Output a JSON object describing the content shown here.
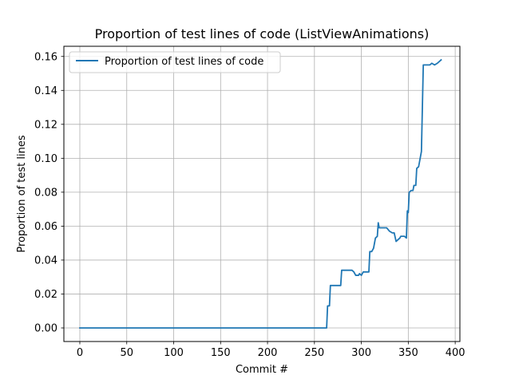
{
  "chart_data": {
    "type": "line",
    "title": "Proportion of test lines of code (ListViewAnimations)",
    "xlabel": "Commit #",
    "ylabel": "Proportion of test lines",
    "xlim": [
      -17,
      405
    ],
    "ylim": [
      -0.008,
      0.166
    ],
    "xticks": [
      0,
      50,
      100,
      150,
      200,
      250,
      300,
      350,
      400
    ],
    "xtick_labels": [
      "0",
      "50",
      "100",
      "150",
      "200",
      "250",
      "300",
      "350",
      "400"
    ],
    "yticks": [
      0.0,
      0.02,
      0.04,
      0.06,
      0.08,
      0.1,
      0.12,
      0.14,
      0.16
    ],
    "ytick_labels": [
      "0.00",
      "0.02",
      "0.04",
      "0.06",
      "0.08",
      "0.10",
      "0.12",
      "0.14",
      "0.16"
    ],
    "grid": true,
    "legend_position": "top-left",
    "series": [
      {
        "name": "Proportion of test lines of code",
        "color": "#1f77b4",
        "points": [
          [
            0,
            0.0
          ],
          [
            263,
            0.0
          ],
          [
            264,
            0.013
          ],
          [
            266,
            0.013
          ],
          [
            267,
            0.025
          ],
          [
            278,
            0.025
          ],
          [
            279,
            0.034
          ],
          [
            290,
            0.034
          ],
          [
            292,
            0.033
          ],
          [
            294,
            0.031
          ],
          [
            297,
            0.031
          ],
          [
            298,
            0.032
          ],
          [
            300,
            0.031
          ],
          [
            302,
            0.033
          ],
          [
            308,
            0.033
          ],
          [
            309,
            0.045
          ],
          [
            311,
            0.045
          ],
          [
            313,
            0.047
          ],
          [
            315,
            0.053
          ],
          [
            317,
            0.054
          ],
          [
            318,
            0.062
          ],
          [
            319,
            0.059
          ],
          [
            327,
            0.059
          ],
          [
            330,
            0.057
          ],
          [
            333,
            0.056
          ],
          [
            335,
            0.056
          ],
          [
            337,
            0.051
          ],
          [
            339,
            0.052
          ],
          [
            341,
            0.053
          ],
          [
            342,
            0.054
          ],
          [
            344,
            0.054
          ],
          [
            346,
            0.054
          ],
          [
            348,
            0.053
          ],
          [
            349,
            0.069
          ],
          [
            350,
            0.068
          ],
          [
            351,
            0.08
          ],
          [
            353,
            0.081
          ],
          [
            355,
            0.081
          ],
          [
            356,
            0.084
          ],
          [
            358,
            0.084
          ],
          [
            359,
            0.094
          ],
          [
            361,
            0.095
          ],
          [
            363,
            0.101
          ],
          [
            364,
            0.104
          ],
          [
            366,
            0.155
          ],
          [
            373,
            0.155
          ],
          [
            375,
            0.156
          ],
          [
            378,
            0.155
          ],
          [
            381,
            0.156
          ],
          [
            385,
            0.158
          ]
        ]
      }
    ]
  }
}
